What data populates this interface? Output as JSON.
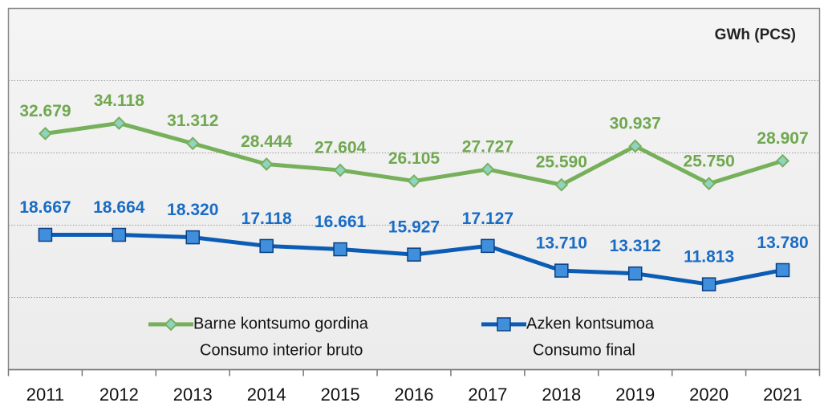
{
  "chart_data": {
    "type": "line",
    "unit_label": "GWh (PCS)",
    "categories": [
      "2011",
      "2012",
      "2013",
      "2014",
      "2015",
      "2016",
      "2017",
      "2018",
      "2019",
      "2020",
      "2021"
    ],
    "series": [
      {
        "name": [
          "Barne kontsumo gordina",
          "Consumo interior bruto"
        ],
        "color": "#77b05a",
        "label_color": "#6fa84f",
        "marker": "diamond",
        "values": [
          32679,
          34118,
          31312,
          28444,
          27604,
          26105,
          27727,
          25590,
          30937,
          25750,
          28907
        ],
        "value_labels": [
          "32.679",
          "34.118",
          "31.312",
          "28.444",
          "27.604",
          "26.105",
          "27.727",
          "25.590",
          "30.937",
          "25.750",
          "28.907"
        ]
      },
      {
        "name": [
          "Azken kontsumoa",
          "Consumo final"
        ],
        "color": "#0b5cb5",
        "label_color": "#1a6cc4",
        "marker": "square",
        "values": [
          18667,
          18664,
          18320,
          17118,
          16661,
          15927,
          17127,
          13710,
          13312,
          11813,
          13780
        ],
        "value_labels": [
          "18.667",
          "18.664",
          "18.320",
          "17.118",
          "16.661",
          "15.927",
          "17.127",
          "13.710",
          "13.312",
          "11.813",
          "13.780"
        ]
      }
    ],
    "ylim": [
      0,
      50000
    ],
    "ygrid": [
      10000,
      20000,
      30000,
      40000
    ],
    "grid": true
  }
}
